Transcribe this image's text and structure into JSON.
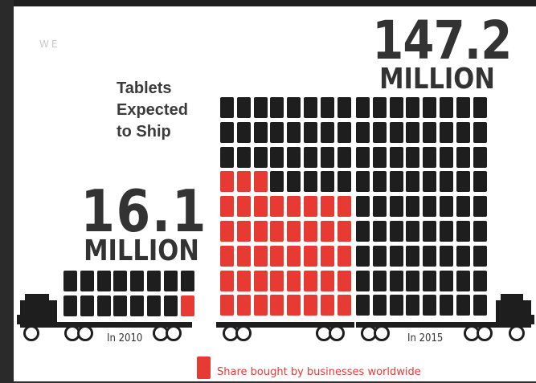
{
  "corner_text": "WE",
  "headline": [
    "Tablets",
    "Expected",
    "to Ship"
  ],
  "year_2010": {
    "number": "16.1",
    "unit": "MILLION",
    "label": "In 2010",
    "tablets_total": 16,
    "tablets_business": 1
  },
  "year_2015": {
    "number": "147.2",
    "unit": "MILLION",
    "label": "In 2015",
    "tablets_total": 144,
    "tablets_business": 43
  },
  "legend": {
    "label": "Share bought by businesses worldwide"
  },
  "colors": {
    "business": "#e63a33",
    "consumer": "#1e1e1e",
    "text": "#333333"
  },
  "icons": [
    "tablet-icon",
    "truck-cab-icon",
    "truck-wheel-icon"
  ]
}
